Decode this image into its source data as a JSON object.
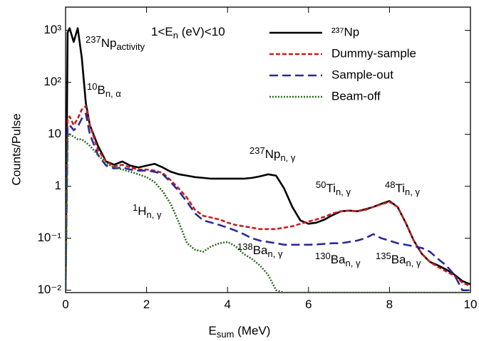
{
  "chart_data": {
    "type": "line",
    "y_label": "Counts/Pulse",
    "x_label": [
      {
        "text": "E"
      },
      {
        "text": "sum",
        "shift": "sub"
      },
      {
        "text": " (MeV)"
      }
    ],
    "xlim": [
      0,
      10
    ],
    "xticks": [
      0,
      2,
      4,
      6,
      8,
      10
    ],
    "ylim": [
      0.009,
      2800
    ],
    "y_scale": "log",
    "yticks": [
      {
        "value": 1000,
        "label": "10³"
      },
      {
        "value": 100,
        "label": "10²"
      },
      10,
      1,
      {
        "value": 0.1,
        "label": "10⁻¹"
      },
      {
        "value": 0.01,
        "label": "10⁻²"
      }
    ],
    "legend": "top-right",
    "x": [
      0,
      0.05,
      0.1,
      0.2,
      0.3,
      0.4,
      0.5,
      0.6,
      0.8,
      1.0,
      1.2,
      1.4,
      1.6,
      1.8,
      2.0,
      2.2,
      2.4,
      2.6,
      2.8,
      3.0,
      3.2,
      3.4,
      3.6,
      3.8,
      4.0,
      4.2,
      4.4,
      4.6,
      4.8,
      5.0,
      5.2,
      5.4,
      5.6,
      5.8,
      6.0,
      6.2,
      6.4,
      6.6,
      6.8,
      7.0,
      7.2,
      7.4,
      7.6,
      7.8,
      8.0,
      8.2,
      8.4,
      8.6,
      8.8,
      9.0,
      9.2,
      9.4,
      9.6,
      9.8,
      10.0
    ],
    "series": [
      {
        "name": "²³⁷Np",
        "color": "#000000",
        "style": "solid",
        "values": [
          0.01,
          900,
          1100,
          600,
          1100,
          300,
          40,
          15,
          6,
          3,
          2.6,
          3.0,
          2.5,
          2.3,
          2.5,
          2.7,
          2.3,
          1.9,
          1.7,
          1.6,
          1.5,
          1.45,
          1.4,
          1.4,
          1.4,
          1.4,
          1.4,
          1.45,
          1.55,
          1.7,
          1.6,
          0.9,
          0.4,
          0.22,
          0.19,
          0.2,
          0.23,
          0.28,
          0.33,
          0.34,
          0.33,
          0.36,
          0.4,
          0.46,
          0.52,
          0.4,
          0.2,
          0.09,
          0.05,
          0.035,
          0.03,
          0.025,
          0.02,
          0.015,
          0.013
        ]
      },
      {
        "name": "Dummy-sample",
        "color": "#c81e1e",
        "style": "dash",
        "values": [
          0.01,
          20,
          22,
          15,
          20,
          30,
          35,
          15,
          5,
          3,
          2.4,
          2.6,
          2.3,
          2.1,
          2.1,
          2.0,
          1.8,
          1.3,
          0.9,
          0.6,
          0.35,
          0.27,
          0.25,
          0.23,
          0.2,
          0.18,
          0.17,
          0.16,
          0.15,
          0.15,
          0.15,
          0.16,
          0.17,
          0.19,
          0.21,
          0.23,
          0.26,
          0.3,
          0.33,
          0.34,
          0.33,
          0.35,
          0.4,
          0.45,
          0.5,
          0.4,
          0.2,
          0.09,
          0.05,
          0.035,
          0.028,
          0.023,
          0.019,
          0.014,
          0.012
        ]
      },
      {
        "name": "Sample-out",
        "color": "#2a2a9a",
        "style": "longdash",
        "values": [
          0.01,
          14,
          15,
          12,
          14,
          20,
          25,
          10,
          4,
          2.5,
          2.2,
          2.3,
          2.1,
          2.0,
          2.0,
          1.9,
          1.7,
          1.2,
          0.8,
          0.5,
          0.3,
          0.22,
          0.2,
          0.18,
          0.16,
          0.14,
          0.12,
          0.1,
          0.09,
          0.085,
          0.08,
          0.075,
          0.075,
          0.075,
          0.075,
          0.076,
          0.078,
          0.08,
          0.08,
          0.085,
          0.09,
          0.1,
          0.12,
          0.1,
          0.09,
          0.08,
          0.075,
          0.07,
          0.065,
          0.055,
          0.04,
          0.03,
          0.02,
          0.01,
          0.01
        ]
      },
      {
        "name": "Beam-off",
        "color": "#2e6b1e",
        "style": "dot",
        "values": [
          0.01,
          9,
          10,
          9,
          8,
          8,
          7,
          6,
          4,
          2.8,
          2.3,
          2.1,
          1.9,
          1.7,
          1.5,
          1.2,
          0.8,
          0.45,
          0.2,
          0.08,
          0.06,
          0.055,
          0.07,
          0.08,
          0.085,
          0.07,
          0.05,
          0.04,
          0.03,
          0.02,
          0.01,
          0.009,
          0.009,
          0.009,
          0.009,
          0.009,
          0.009,
          0.009,
          0.009,
          0.009,
          0.009,
          0.009,
          0.009,
          0.009,
          0.009,
          0.009,
          0.009,
          0.009,
          0.009,
          0.009,
          0.009,
          0.009,
          0.009,
          0.009,
          0.009
        ]
      }
    ],
    "annotations": [
      {
        "parts": [
          {
            "text": "1<E"
          },
          {
            "text": "n",
            "shift": "sub"
          },
          {
            "text": " (eV)<10"
          }
        ]
      },
      {
        "parts": [
          {
            "text": "237",
            "shift": "super"
          },
          {
            "text": "Np"
          },
          {
            "text": "activity",
            "shift": "sub"
          }
        ]
      },
      {
        "parts": [
          {
            "text": "10",
            "shift": "super"
          },
          {
            "text": "B"
          },
          {
            "text": "n, α",
            "shift": "sub"
          }
        ]
      },
      {
        "parts": [
          {
            "text": "237",
            "shift": "super"
          },
          {
            "text": "Np"
          },
          {
            "text": "n, γ",
            "shift": "sub"
          }
        ]
      },
      {
        "parts": [
          {
            "text": "1",
            "shift": "super"
          },
          {
            "text": "H"
          },
          {
            "text": "n, γ",
            "shift": "sub"
          }
        ]
      },
      {
        "parts": [
          {
            "text": "50",
            "shift": "super"
          },
          {
            "text": "Ti"
          },
          {
            "text": "n, γ",
            "shift": "sub"
          }
        ]
      },
      {
        "parts": [
          {
            "text": "48",
            "shift": "super"
          },
          {
            "text": "Ti"
          },
          {
            "text": "n, γ",
            "shift": "sub"
          }
        ]
      },
      {
        "parts": [
          {
            "text": "138",
            "shift": "super"
          },
          {
            "text": "Ba"
          },
          {
            "text": "n, γ",
            "shift": "sub"
          }
        ]
      },
      {
        "parts": [
          {
            "text": "130",
            "shift": "super"
          },
          {
            "text": "Ba"
          },
          {
            "text": "n, γ",
            "shift": "sub"
          }
        ]
      },
      {
        "parts": [
          {
            "text": "135",
            "shift": "super"
          },
          {
            "text": "Ba"
          },
          {
            "text": "n, γ",
            "shift": "sub"
          }
        ]
      }
    ]
  }
}
